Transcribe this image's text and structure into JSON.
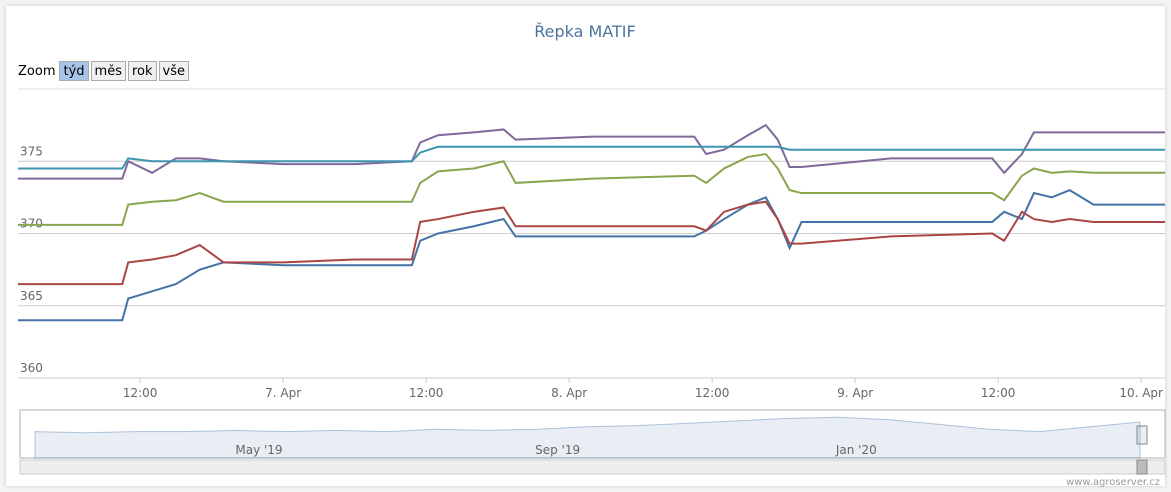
{
  "title": "Řepka MATIF",
  "zoom": {
    "label": "Zoom",
    "buttons": [
      "týd",
      "měs",
      "rok",
      "vše"
    ],
    "selected": 0
  },
  "footer": "www.agroserver.cz",
  "chart_data": {
    "type": "line",
    "x": [
      1.75,
      10.5,
      11,
      13,
      15,
      17,
      19,
      24,
      30,
      34.8,
      35.5,
      37,
      40,
      42.5,
      43.5,
      50,
      58.5,
      59.5,
      61,
      63,
      64.5,
      65.5,
      66.5,
      67.5,
      75,
      83.5,
      84.5,
      86,
      87,
      88.5,
      90,
      92,
      98
    ],
    "series": [
      {
        "color": "#4572a7",
        "values": [
          364,
          364,
          365.5,
          366,
          366.5,
          367.5,
          368,
          367.8,
          367.8,
          367.8,
          369.5,
          370,
          370.5,
          371,
          369.8,
          369.8,
          369.8,
          370.2,
          371,
          372,
          372.5,
          371,
          369,
          370.8,
          370.8,
          370.8,
          371.5,
          371,
          372.8,
          372.5,
          373,
          372,
          372
        ]
      },
      {
        "color": "#aa4643",
        "values": [
          366.5,
          366.5,
          368,
          368.2,
          368.5,
          369.2,
          368,
          368,
          368.2,
          368.2,
          370.8,
          371,
          371.5,
          371.8,
          370.5,
          370.5,
          370.5,
          370.2,
          371.5,
          372,
          372.2,
          371,
          369.3,
          369.3,
          369.8,
          370,
          369.5,
          371.5,
          371,
          370.8,
          371,
          370.8,
          370.8
        ]
      },
      {
        "color": "#89a54e",
        "values": [
          370.6,
          370.6,
          372,
          372.2,
          372.3,
          372.8,
          372.2,
          372.2,
          372.2,
          372.2,
          373.5,
          374.3,
          374.5,
          375,
          373.5,
          373.8,
          374,
          373.5,
          374.5,
          375.3,
          375.5,
          374.5,
          373,
          372.8,
          372.8,
          372.8,
          372.3,
          374,
          374.5,
          374.2,
          374.3,
          374.2,
          374.2
        ]
      },
      {
        "color": "#80699b",
        "values": [
          373.8,
          373.8,
          375,
          374.2,
          375.2,
          375.2,
          375,
          374.8,
          374.8,
          375,
          376.3,
          376.8,
          377,
          377.2,
          376.5,
          376.7,
          376.7,
          375.5,
          375.8,
          376.8,
          377.5,
          376.5,
          374.6,
          374.6,
          375.2,
          375.2,
          374.2,
          375.5,
          377,
          377,
          377,
          377,
          377
        ]
      },
      {
        "color": "#3d96ae",
        "values": [
          374.5,
          374.5,
          375.2,
          375,
          375,
          375,
          375,
          375,
          375,
          375,
          375.6,
          376,
          376,
          376,
          376,
          376,
          376,
          376,
          376,
          376,
          376,
          376,
          375.8,
          375.8,
          375.8,
          375.8,
          375.8,
          375.8,
          375.8,
          375.8,
          375.8,
          375.8,
          375.8
        ]
      }
    ],
    "xlim": [
      1.75,
      98
    ],
    "xticks": [
      {
        "value": 12,
        "label": "12:00"
      },
      {
        "value": 24,
        "label": "7. Apr"
      },
      {
        "value": 36,
        "label": "12:00"
      },
      {
        "value": 48,
        "label": "8. Apr"
      },
      {
        "value": 60,
        "label": "12:00"
      },
      {
        "value": 72,
        "label": "9. Apr"
      },
      {
        "value": 84,
        "label": "12:00"
      },
      {
        "value": 96,
        "label": "10. Apr"
      }
    ],
    "ylim": [
      360,
      380
    ],
    "yticks": [
      360,
      365,
      370,
      375
    ],
    "grid": true,
    "navigator": {
      "labels": [
        "May '19",
        "Sep '19",
        "Jan '20"
      ],
      "values": [
        362,
        361,
        362,
        362,
        363,
        362,
        363,
        362,
        364,
        363,
        364,
        366,
        367,
        369,
        371,
        373,
        374,
        372,
        368,
        364,
        362,
        366,
        370
      ],
      "ylim": [
        340,
        380
      ],
      "color": "#4572a7"
    }
  }
}
